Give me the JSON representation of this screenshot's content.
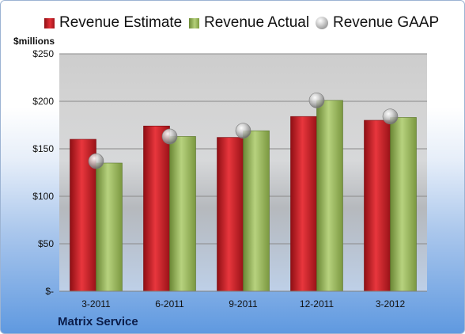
{
  "legend": {
    "estimate": "Revenue Estimate",
    "actual": "Revenue Actual",
    "gaap": "Revenue GAAP"
  },
  "unit_label": "$millions",
  "company": "Matrix Service",
  "colors": {
    "estimate": "#c8181f",
    "actual": "#9bbb59",
    "gaap": "#b0b0b0"
  },
  "chart_data": {
    "type": "bar",
    "categories": [
      "3-2011",
      "6-2011",
      "9-2011",
      "12-2011",
      "3-2012"
    ],
    "series": [
      {
        "name": "Revenue Estimate",
        "values": [
          160,
          174,
          162,
          184,
          180
        ]
      },
      {
        "name": "Revenue Actual",
        "values": [
          135,
          163,
          169,
          201,
          183
        ]
      },
      {
        "name": "Revenue GAAP",
        "values": [
          137,
          163,
          169,
          201,
          184
        ]
      }
    ],
    "ylabel": "$millions",
    "ylim": [
      0,
      250
    ],
    "yticks": [
      0,
      50,
      100,
      150,
      200,
      250
    ],
    "yticklabels": [
      "$-",
      "$50",
      "$100",
      "$150",
      "$200",
      "$250"
    ],
    "grid": true,
    "legend_position": "top"
  }
}
